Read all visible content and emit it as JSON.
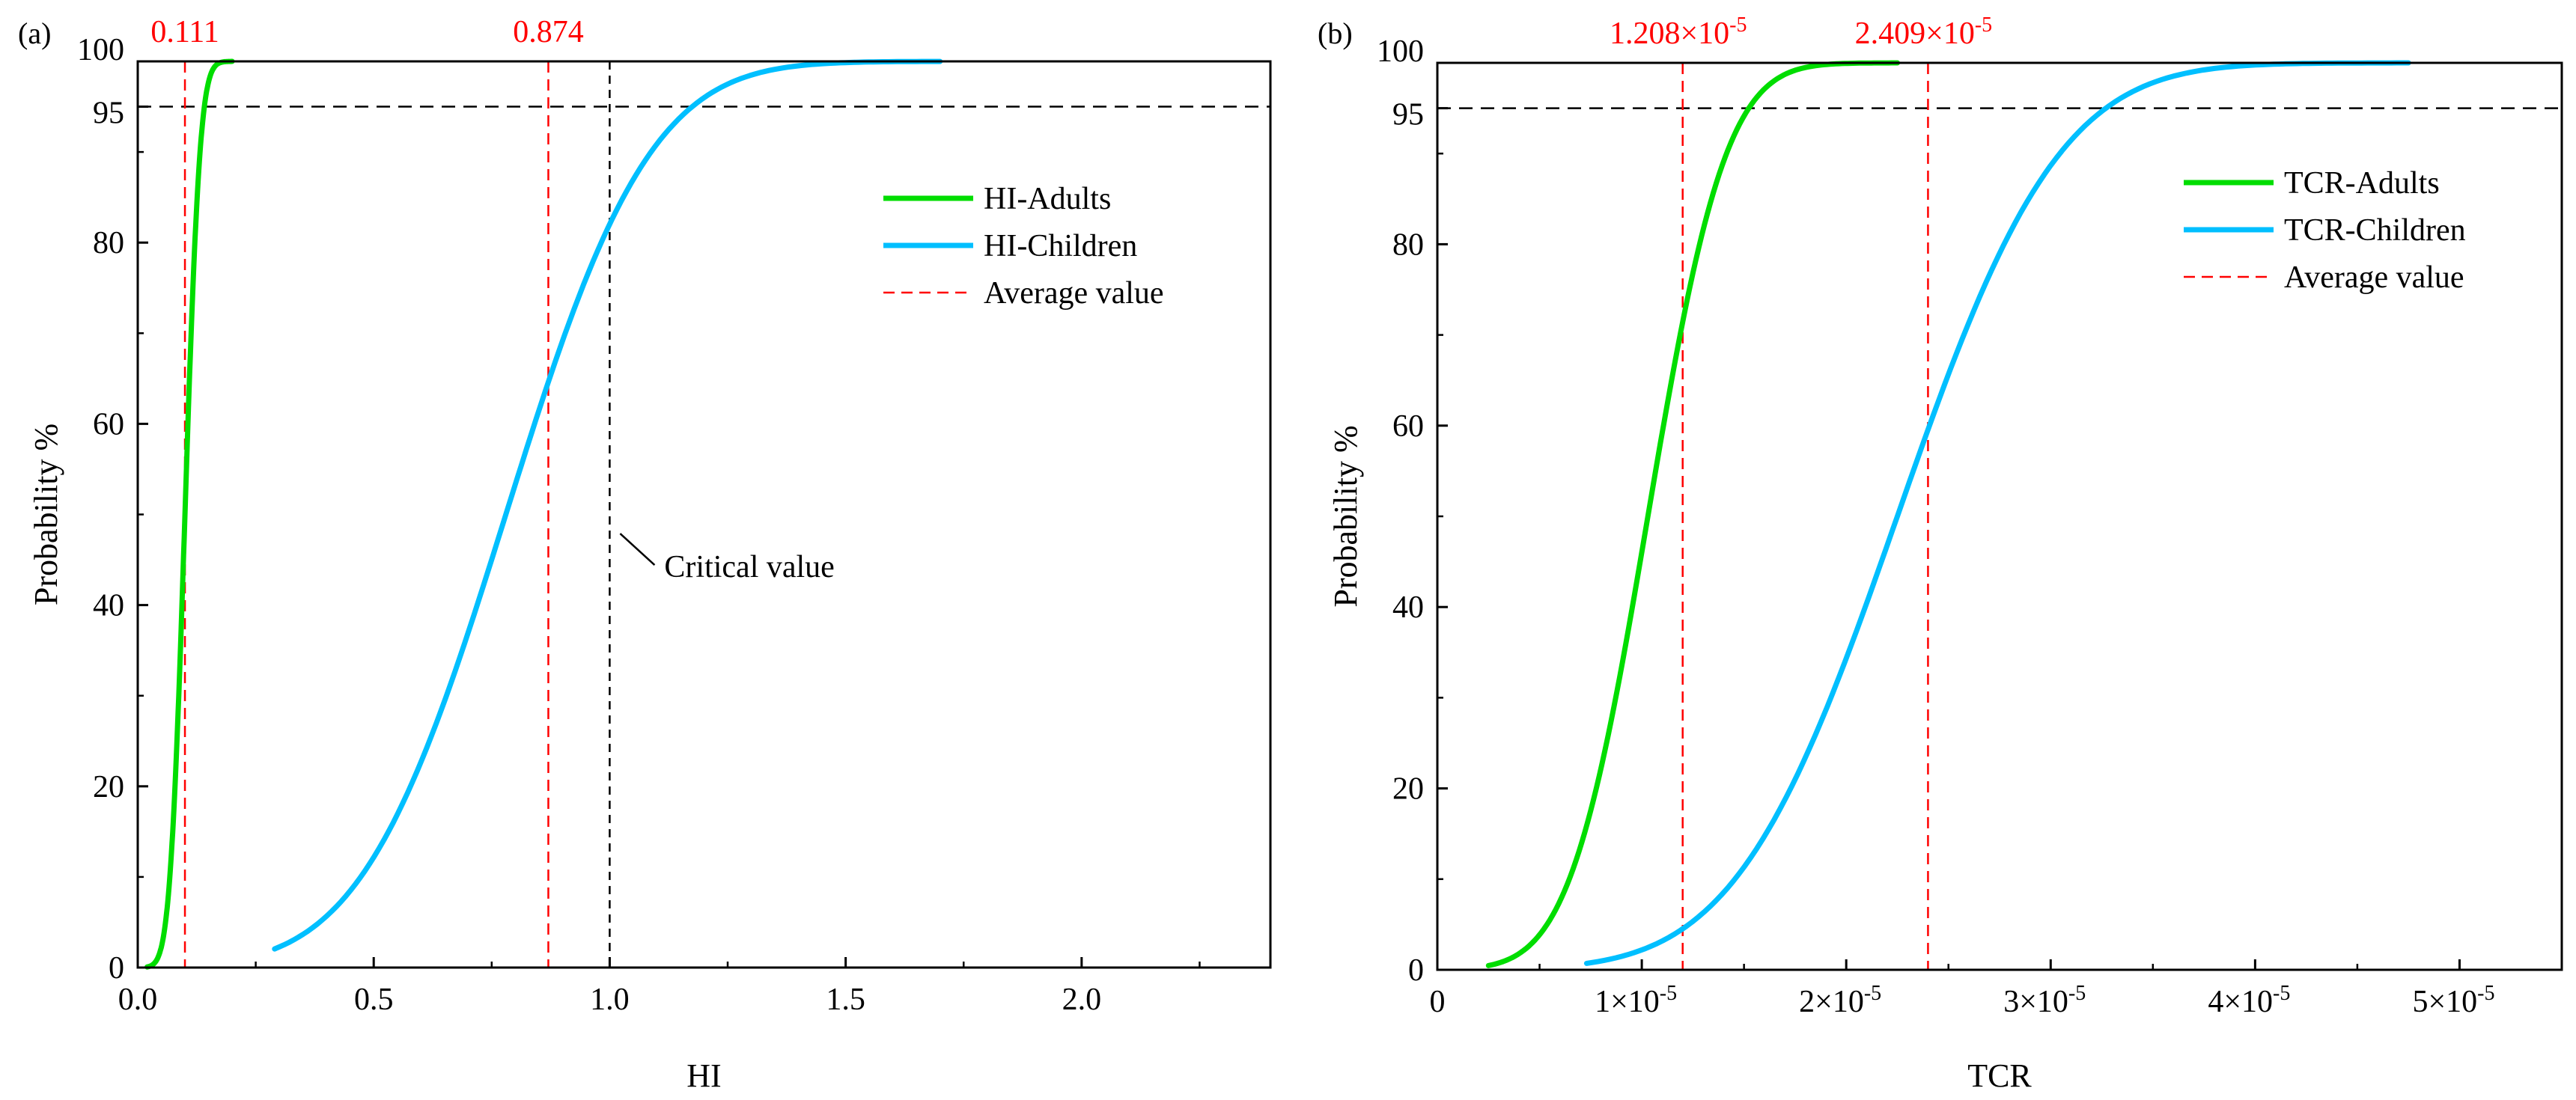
{
  "colors": {
    "adults": "#00dd00",
    "children": "#00bfff",
    "average": "#ff0000",
    "reference": "#000000"
  },
  "chart_data": [
    {
      "panel_label": "(a)",
      "type": "line",
      "xlabel": "HI",
      "ylabel": "Probability %",
      "xlim": [
        0,
        2.4
      ],
      "ylim": [
        0,
        100
      ],
      "xticks": [
        {
          "value": 0.0,
          "label": "0.0"
        },
        {
          "value": 0.5,
          "label": "0.5"
        },
        {
          "value": 1.0,
          "label": "1.0"
        },
        {
          "value": 1.5,
          "label": "1.5"
        },
        {
          "value": 2.0,
          "label": "2.0"
        }
      ],
      "yticks": [
        {
          "value": 0,
          "label": "0"
        },
        {
          "value": 20,
          "label": "20"
        },
        {
          "value": 40,
          "label": "40"
        },
        {
          "value": 60,
          "label": "60"
        },
        {
          "value": 80,
          "label": "80"
        },
        {
          "value": 95,
          "label": "95"
        },
        {
          "value": 100,
          "label": "100"
        }
      ],
      "series": [
        {
          "name": "HI-Adults",
          "color_key": "adults",
          "dist": "normal",
          "mean": 0.1,
          "sd": 0.025,
          "x_range": [
            0.02,
            0.2
          ]
        },
        {
          "name": "HI-Children",
          "color_key": "children",
          "dist": "normal",
          "mean": 0.78,
          "sd": 0.24,
          "x_range": [
            0.29,
            1.7
          ]
        }
      ],
      "average_lines": [
        {
          "x": 0.1,
          "label": "0.111"
        },
        {
          "x": 0.87,
          "label": "0.874"
        }
      ],
      "reference_lines": {
        "y": 95,
        "x": 1.0
      },
      "annotation": {
        "text": "Critical value",
        "x": 1.0,
        "y": 45
      },
      "legend": {
        "position": "top-right",
        "entries": [
          {
            "label": "HI-Adults",
            "color_key": "adults",
            "style": "solid"
          },
          {
            "label": "HI-Children",
            "color_key": "children",
            "style": "solid"
          },
          {
            "label": "Average value",
            "color_key": "average",
            "style": "dashed"
          }
        ]
      }
    },
    {
      "panel_label": "(b)",
      "type": "line",
      "xlabel": "TCR",
      "ylabel": "Probability %",
      "xlim": [
        0,
        5.5
      ],
      "ylim": [
        0,
        100
      ],
      "x_unit_exponent": "-5",
      "xticks": [
        {
          "value": 0,
          "label": "0"
        },
        {
          "value": 1,
          "mantissa": "1×10",
          "exp": "-5"
        },
        {
          "value": 2,
          "mantissa": "2×10",
          "exp": "-5"
        },
        {
          "value": 3,
          "mantissa": "3×10",
          "exp": "-5"
        },
        {
          "value": 4,
          "mantissa": "4×10",
          "exp": "-5"
        },
        {
          "value": 5,
          "mantissa": "5×10",
          "exp": "-5"
        }
      ],
      "yticks": [
        {
          "value": 0,
          "label": "0"
        },
        {
          "value": 20,
          "label": "20"
        },
        {
          "value": 40,
          "label": "40"
        },
        {
          "value": 60,
          "label": "60"
        },
        {
          "value": 80,
          "label": "80"
        },
        {
          "value": 95,
          "label": "95"
        },
        {
          "value": 100,
          "label": "100"
        }
      ],
      "series": [
        {
          "name": "TCR-Adults",
          "color_key": "adults",
          "dist": "normal",
          "mean": 1.03,
          "sd": 0.3,
          "x_range": [
            0.25,
            2.25
          ]
        },
        {
          "name": "TCR-Children",
          "color_key": "children",
          "dist": "normal",
          "mean": 2.25,
          "sd": 0.62,
          "x_range": [
            0.73,
            4.75
          ]
        }
      ],
      "average_lines": [
        {
          "x": 1.2,
          "mantissa": "1.208×10",
          "exp": "-5"
        },
        {
          "x": 2.4,
          "mantissa": "2.409×10",
          "exp": "-5"
        }
      ],
      "reference_lines": {
        "y": 95
      },
      "legend": {
        "position": "top-right",
        "entries": [
          {
            "label": "TCR-Adults",
            "color_key": "adults",
            "style": "solid"
          },
          {
            "label": "TCR-Children",
            "color_key": "children",
            "style": "solid"
          },
          {
            "label": "Average value",
            "color_key": "average",
            "style": "dashed"
          }
        ]
      }
    }
  ]
}
